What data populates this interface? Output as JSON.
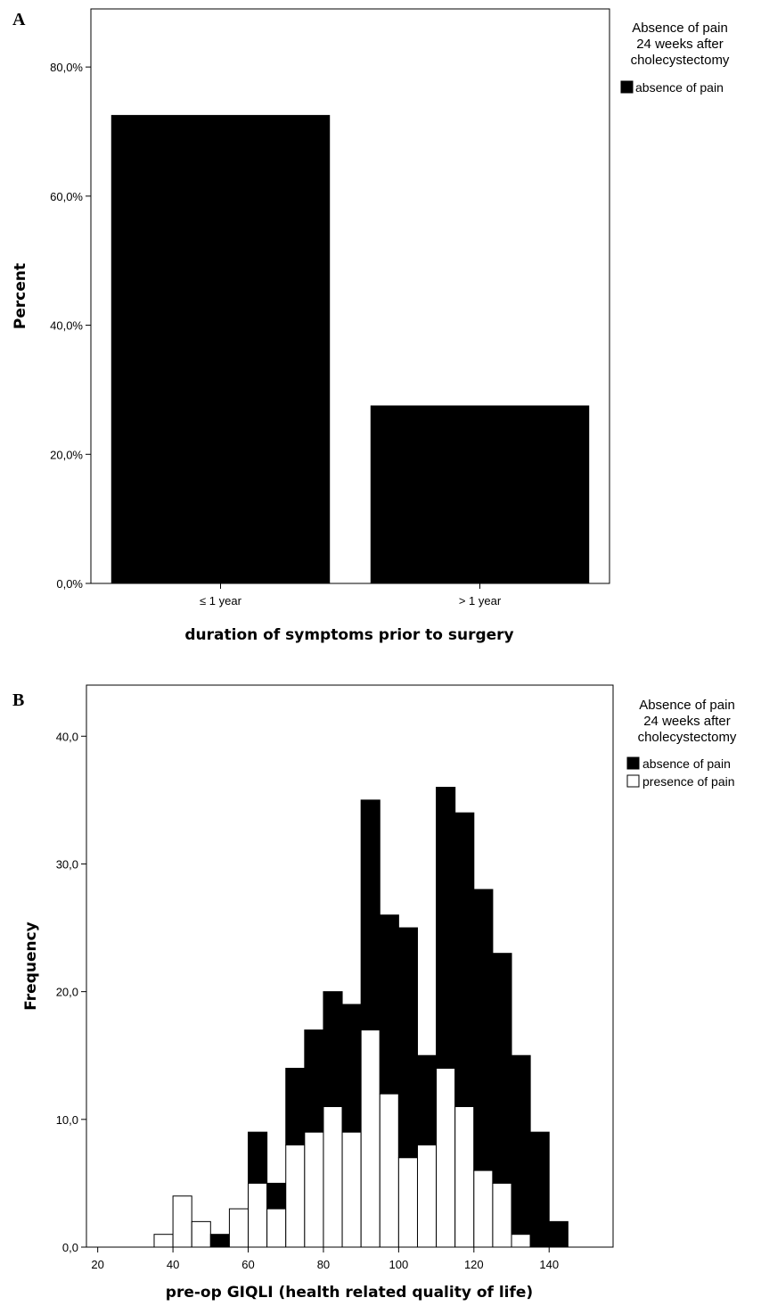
{
  "chart_data": [
    {
      "panel": "A",
      "type": "bar",
      "xlabel": "duration of symptoms prior to surgery",
      "ylabel": "Percent",
      "categories": [
        "≤ 1 year",
        "> 1 year"
      ],
      "series": [
        {
          "name": "absence of pain",
          "values": [
            72.5,
            27.5
          ],
          "color": "#000000"
        }
      ],
      "ylim": [
        0,
        89
      ],
      "yticks": [
        0,
        20,
        40,
        60,
        80
      ],
      "ytick_labels": [
        "0,0%",
        "20,0%",
        "40,0%",
        "60,0%",
        "80,0%"
      ],
      "legend": {
        "title": [
          "Absence of pain",
          "24 weeks after",
          "cholecystectomy"
        ],
        "position": "right"
      },
      "grid": false
    },
    {
      "panel": "B",
      "type": "bar",
      "stacked": true,
      "xlabel": "pre-op GIQLI (health related quality of life)",
      "ylabel": "Frequency",
      "bin_width": 5,
      "bin_starts": [
        25,
        30,
        35,
        40,
        45,
        50,
        55,
        60,
        65,
        70,
        75,
        80,
        85,
        90,
        95,
        100,
        105,
        110,
        115,
        120,
        125,
        130,
        135,
        140
      ],
      "series": [
        {
          "name": "absence of pain",
          "values": [
            0,
            0,
            0,
            0,
            0,
            1,
            0,
            4,
            2,
            6,
            8,
            9,
            10,
            18,
            14,
            18,
            7,
            22,
            23,
            22,
            18,
            14,
            9,
            2
          ],
          "color": "#000000"
        },
        {
          "name": "presence of pain",
          "values": [
            0,
            0,
            1,
            4,
            2,
            0,
            3,
            5,
            3,
            8,
            9,
            11,
            9,
            17,
            12,
            7,
            8,
            14,
            11,
            6,
            5,
            1,
            0,
            0
          ],
          "color": "#ffffff"
        }
      ],
      "totals": [
        0,
        0,
        1,
        4,
        2,
        1,
        3,
        9,
        5,
        14,
        17,
        20,
        19,
        35,
        26,
        25,
        15,
        36,
        34,
        28,
        23,
        15,
        9,
        2
      ],
      "xlim": [
        17,
        157
      ],
      "xticks": [
        20,
        40,
        60,
        80,
        100,
        120,
        140
      ],
      "xtick_labels": [
        "20",
        "40",
        "60",
        "80",
        "100",
        "120",
        "140"
      ],
      "ylim": [
        0,
        44
      ],
      "yticks": [
        0,
        10,
        20,
        30,
        40
      ],
      "ytick_labels": [
        "0,0",
        "10,0",
        "20,0",
        "30,0",
        "40,0"
      ],
      "legend": {
        "title": [
          "Absence of pain",
          "24 weeks after",
          "cholecystectomy"
        ],
        "position": "right"
      },
      "grid": false
    }
  ]
}
